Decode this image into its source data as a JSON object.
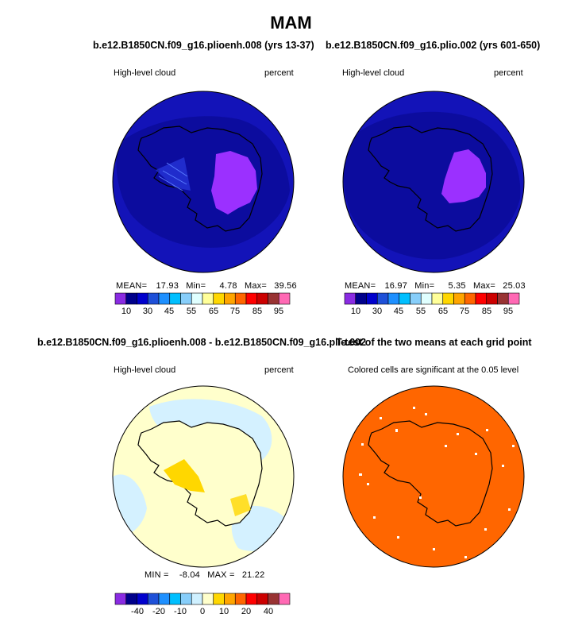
{
  "figure": {
    "title": "MAM"
  },
  "panels": [
    {
      "title": "b.e12.B1850CN.f09_g16.plioenh.008 (yrs 13-37)",
      "left_label": "High-level cloud",
      "right_label": "percent",
      "stats": {
        "mean_label": "MEAN=",
        "mean": "17.93",
        "min_label": "Min=",
        "min": "4.78",
        "max_label": "Max=",
        "max": "39.56"
      },
      "colorbar_ticks": [
        "10",
        "30",
        "45",
        "55",
        "65",
        "75",
        "85",
        "95"
      ]
    },
    {
      "title": "b.e12.B1850CN.f09_g16.plio.002 (yrs 601-650)",
      "left_label": "High-level cloud",
      "right_label": "percent",
      "stats": {
        "mean_label": "MEAN=",
        "mean": "16.97",
        "min_label": "Min=",
        "min": "5.35",
        "max_label": "Max=",
        "max": "25.03"
      },
      "colorbar_ticks": [
        "10",
        "30",
        "45",
        "55",
        "65",
        "75",
        "85",
        "95"
      ]
    },
    {
      "title": "b.e12.B1850CN.f09_g16.plioenh.008 - b.e12.B1850CN.f09_g16.plio.002",
      "left_label": "High-level cloud",
      "right_label": "percent",
      "stats": {
        "min_label": "MIN =",
        "min": "-8.04",
        "max_label": "MAX =",
        "max": "21.22"
      },
      "colorbar_ticks": [
        "-40",
        "-20",
        "-10",
        "0",
        "10",
        "20",
        "40"
      ]
    },
    {
      "title": "T-test of the two means at each grid point",
      "left_label": "Colored cells are significant at the 0.05 level"
    }
  ],
  "colors": {
    "abs_scale": [
      "#8a2be2",
      "#00008b",
      "#0000cd",
      "#1e50d8",
      "#1e90ff",
      "#00bfff",
      "#87cefa",
      "#e0ffff",
      "#ffff99",
      "#ffd700",
      "#ffa500",
      "#ff6600",
      "#ff0000",
      "#cc0000",
      "#993333",
      "#ff69b4"
    ],
    "diff_scale": [
      "#8a2be2",
      "#00008b",
      "#0000cd",
      "#1e50d8",
      "#1e90ff",
      "#00bfff",
      "#87cefa",
      "#cff0ff",
      "#ffffcc",
      "#ffd700",
      "#ffa500",
      "#ff6600",
      "#ff0000",
      "#cc0000",
      "#993333",
      "#ff69b4"
    ],
    "ocean_abs": "#1313b8",
    "land_abs": "#0c0c9e",
    "plateau_abs": "#9b30ff",
    "diff_background": "#ffffcc",
    "diff_light_blue": "#d4f1ff",
    "diff_highlight": "#ffd700",
    "ttest_fill": "#ff6600"
  }
}
